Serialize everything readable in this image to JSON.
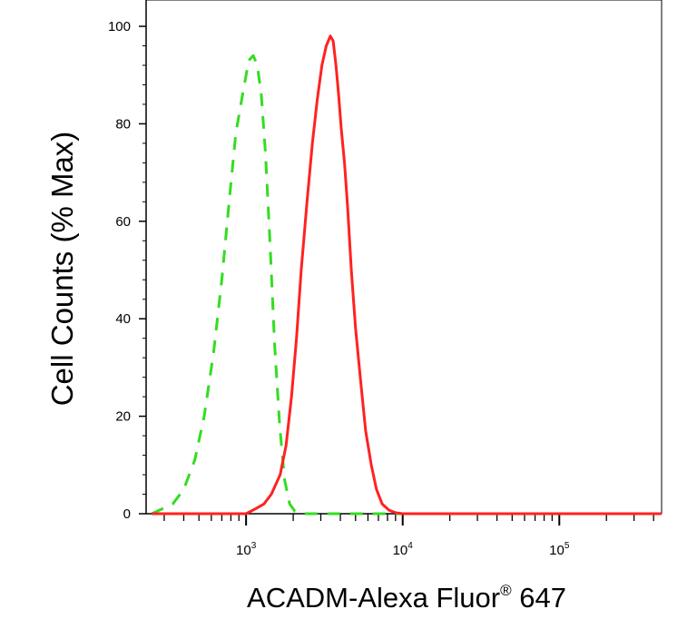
{
  "chart_data": {
    "type": "line",
    "xlabel": "ACADM-Alexa Fluor",
    "xlabel_superscript": "®",
    "xlabel_suffix": " 647",
    "ylabel": "Cell Counts (% Max)",
    "x_scale": "log",
    "xlim": [
      230,
      450000
    ],
    "ylim": [
      0,
      100
    ],
    "x_ticks": [
      {
        "value": 1000,
        "base": "10",
        "exp": "3"
      },
      {
        "value": 10000,
        "base": "10",
        "exp": "4"
      },
      {
        "value": 100000,
        "base": "10",
        "exp": "5"
      }
    ],
    "y_ticks": [
      "0",
      "20",
      "40",
      "60",
      "80",
      "100"
    ],
    "y_tick_values": [
      0,
      20,
      40,
      60,
      80,
      100
    ],
    "series": [
      {
        "color": "#33dd22",
        "style": "dashed",
        "x": [
          250,
          340,
          400,
          470,
          540,
          620,
          700,
          780,
          860,
          950,
          1040,
          1110,
          1180,
          1250,
          1330,
          1420,
          1520,
          1640,
          1760,
          1900,
          2050,
          2250,
          2600,
          4000,
          10000,
          100000,
          450000
        ],
        "y": [
          0,
          2,
          5,
          11,
          20,
          33,
          48,
          64,
          78,
          86,
          93,
          94,
          92,
          86,
          74,
          56,
          35,
          18,
          7,
          2,
          0.5,
          0,
          0,
          0,
          0,
          0,
          0
        ]
      },
      {
        "color": "#ff2222",
        "style": "solid",
        "x": [
          250,
          1000,
          1150,
          1300,
          1450,
          1650,
          1800,
          1950,
          2100,
          2250,
          2450,
          2650,
          2850,
          3050,
          3250,
          3450,
          3600,
          3750,
          3900,
          4050,
          4250,
          4450,
          4700,
          5000,
          5400,
          5800,
          6300,
          6800,
          7400,
          8200,
          9000,
          10000,
          12000,
          20000,
          100000,
          450000
        ],
        "y": [
          0,
          0,
          1,
          2,
          4,
          8,
          14,
          24,
          36,
          50,
          64,
          76,
          85,
          92,
          96,
          98,
          97,
          92,
          86,
          79,
          72,
          63,
          50,
          38,
          27,
          17,
          10,
          5,
          2,
          0.7,
          0.2,
          0,
          0,
          0,
          0,
          0
        ]
      }
    ],
    "grid": false,
    "legend": "none"
  }
}
